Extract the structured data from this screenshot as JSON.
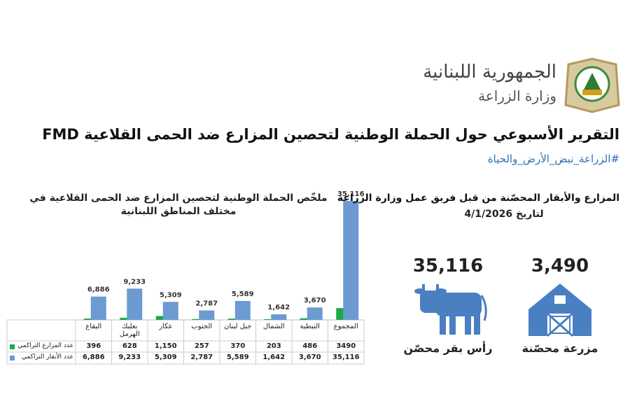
{
  "header": {
    "country": "الجمهورية اللبنانية",
    "ministry": "وزارة الزراعة"
  },
  "title": "التقرير الأسبوعي حول الحملة الوطنية لتحصين المزارع ضد الحمى القلاعية FMD",
  "hashtag": "#الزراعة_نبض_الأرض_والحياة",
  "summary": {
    "heading": "المزارع والأبقار المحصّنة من قبل فريق عمل وزارة الزراعة",
    "date": "لتاريخ 4/1/2026",
    "cows": {
      "value": "35,116",
      "label": "رأس بقر محصّن"
    },
    "farms": {
      "value": "3,490",
      "label": "مزرعة محصّنة"
    }
  },
  "chart_data": {
    "type": "bar",
    "title": "ملخّص الحملة الوطنية لتحصين المزارع ضد الحمى القلاعية في مختلف المناطق اللبنانية",
    "categories": [
      "البقاع",
      "بعلبك الهرمل",
      "عكار",
      "الجنوب",
      "جبل لبنان",
      "الشمال",
      "النبطية",
      "المجموع"
    ],
    "series": [
      {
        "name": "عدد المزارع التراكمي",
        "color": "#1aaa48",
        "values": [
          396,
          628,
          1150,
          257,
          370,
          203,
          486,
          3490
        ],
        "value_labels": [
          "396",
          "628",
          "1,150",
          "257",
          "370",
          "203",
          "486",
          "3490"
        ]
      },
      {
        "name": "عدد الأبقار التراكمي",
        "color": "#6b9bd1",
        "values": [
          6886,
          9233,
          5309,
          2787,
          5589,
          1642,
          3670,
          35116
        ],
        "value_labels": [
          "6,886",
          "9,233",
          "5,309",
          "2,787",
          "5,589",
          "1,642",
          "3,670",
          "35,116"
        ]
      }
    ],
    "ylim": [
      0,
      35116
    ]
  }
}
